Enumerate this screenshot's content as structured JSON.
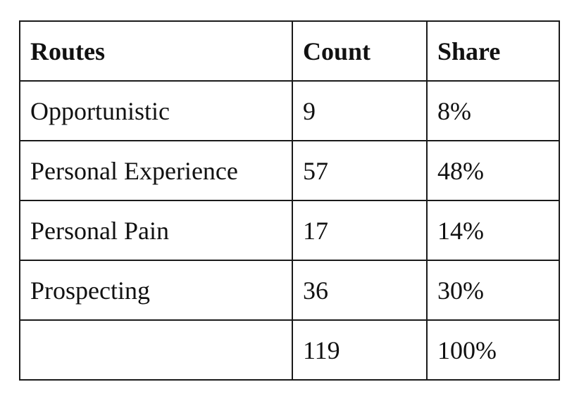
{
  "table": {
    "headers": [
      "Routes",
      "Count",
      "Share"
    ],
    "rows": [
      [
        "Opportunistic",
        "9",
        "8%"
      ],
      [
        "Personal Experience",
        "57",
        "48%"
      ],
      [
        "Personal Pain",
        "17",
        "14%"
      ],
      [
        "Prospecting",
        "36",
        "30%"
      ],
      [
        "",
        "119",
        "100%"
      ]
    ]
  }
}
